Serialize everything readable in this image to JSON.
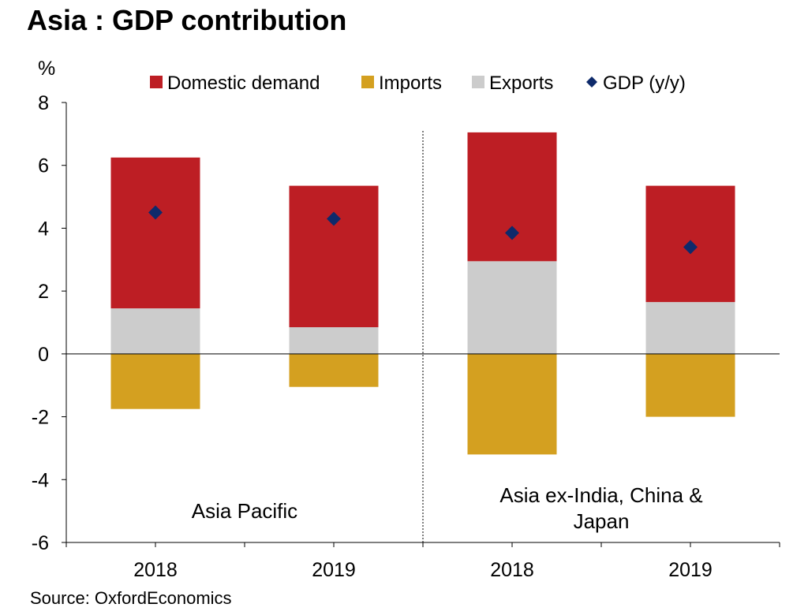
{
  "chart_data": {
    "type": "bar",
    "stacked": true,
    "title": "Asia : GDP contribution",
    "ylabel": "%",
    "ylim": [
      -6,
      8
    ],
    "yticks": [
      "8",
      "6",
      "4",
      "2",
      "0",
      "-2",
      "-4",
      "-6"
    ],
    "categories": [
      "2018",
      "2019",
      "2018",
      "2019"
    ],
    "groups": [
      {
        "label": "Asia Pacific",
        "categories": [
          0,
          1
        ]
      },
      {
        "label": "Asia ex-India, China & Japan",
        "label_lines": [
          "Asia ex-India, China &",
          "Japan"
        ],
        "categories": [
          2,
          3
        ]
      }
    ],
    "series": [
      {
        "name": "Domestic demand",
        "color": "#BD1E24",
        "type": "bar",
        "values": [
          4.8,
          4.5,
          4.1,
          3.7
        ]
      },
      {
        "name": "Imports",
        "color": "#D4A020",
        "type": "bar",
        "values": [
          -1.75,
          -1.05,
          -3.2,
          -2.0
        ]
      },
      {
        "name": "Exports",
        "color": "#CCCCCC",
        "type": "bar",
        "values": [
          1.45,
          0.85,
          2.95,
          1.65
        ]
      },
      {
        "name": "GDP (y/y)",
        "color": "#0E2A6B",
        "type": "marker",
        "values": [
          4.5,
          4.3,
          3.85,
          3.4
        ]
      }
    ],
    "legend_position": "top",
    "grid": false
  },
  "source": "Source: OxfordEconomics"
}
